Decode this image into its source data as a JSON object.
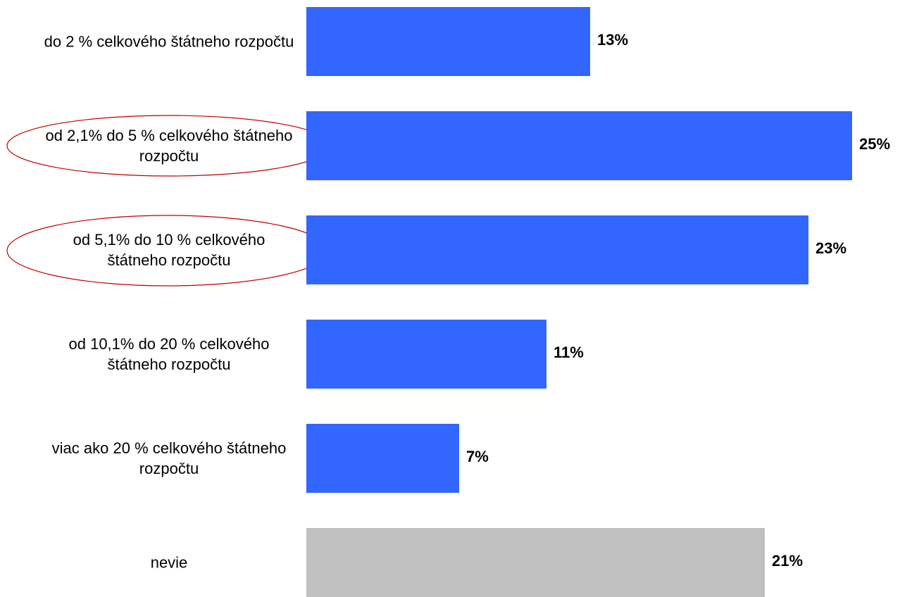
{
  "chart_data": {
    "type": "barh",
    "categories": [
      "do 2 % celkového štátneho rozpočtu",
      "od 2,1% do 5 % celkového štátneho rozpočtu",
      "od 5,1% do 10 % celkového štátneho rozpočtu",
      "od 10,1% do 20 % celkového štátneho rozpočtu",
      "viac ako 20 % celkového štátneho rozpočtu",
      "nevie"
    ],
    "values": [
      13,
      25,
      23,
      11,
      7,
      21
    ],
    "value_labels": [
      "13%",
      "25%",
      "23%",
      "11%",
      "7%",
      "21%"
    ],
    "colors": [
      "#3366ff",
      "#3366ff",
      "#3366ff",
      "#3366ff",
      "#3366ff",
      "#c0c0c0"
    ]
  }
}
